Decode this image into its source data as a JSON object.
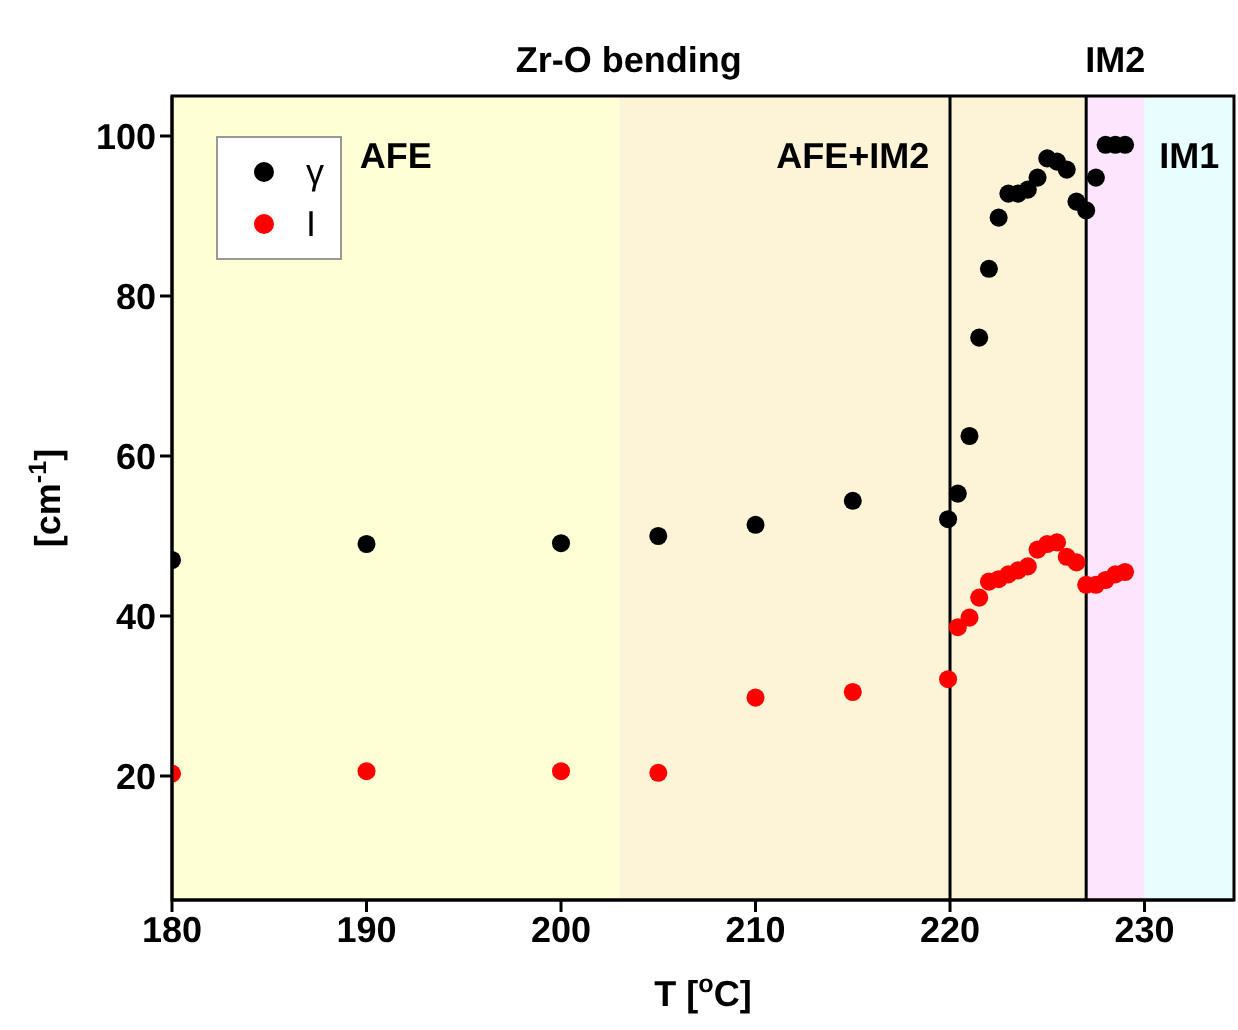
{
  "chart_data": {
    "type": "scatter",
    "title": "Zr-O bending",
    "xlabel": "T [$^{o}$C]",
    "ylabel": "[cm$^{-1}$]",
    "xlim": [
      180,
      234.6
    ],
    "xticks": [
      180,
      190,
      200,
      210,
      220,
      230
    ],
    "ylim": [
      4.5,
      105
    ],
    "yticks": [
      20,
      40,
      60,
      80,
      100
    ],
    "grid": false,
    "legend": "top left",
    "marker": "circle",
    "bands": [
      {
        "axis": "x",
        "from": 180,
        "to": 203,
        "label": "AFE",
        "color": "#ffffd6"
      },
      {
        "axis": "x",
        "from": 203,
        "to": 227,
        "label": "AFE+IM2",
        "color": "#fdf3d6"
      },
      {
        "axis": "x",
        "from": 227,
        "to": 230,
        "label": "IM2",
        "color": "#fde6fd"
      },
      {
        "axis": "x",
        "from": 230,
        "to": 234.6,
        "label": "IM1",
        "color": "#e8fdfd"
      }
    ],
    "ref_lines": [
      {
        "axis": "x",
        "value": 220,
        "color": "#000000"
      },
      {
        "axis": "x",
        "value": 227,
        "color": "#000000"
      }
    ],
    "series": [
      {
        "name": "γ",
        "color": "#000000",
        "x": [
          180,
          190,
          200,
          205,
          210,
          215,
          219.9,
          220.4,
          221,
          221.5,
          222,
          222.5,
          223,
          223.5,
          224,
          224.5,
          225,
          225.5,
          226,
          226.5,
          227,
          227.5,
          228,
          228.5,
          229
        ],
        "values": [
          47,
          49,
          49.1,
          50,
          51.4,
          54.4,
          52.1,
          55.3,
          62.5,
          74.8,
          83.4,
          89.8,
          92.8,
          92.8,
          93.3,
          94.8,
          97.2,
          96.8,
          95.8,
          91.8,
          90.7,
          94.8,
          98.9,
          98.9,
          98.9
        ]
      },
      {
        "name": "I",
        "color": "#ff0000",
        "x": [
          180,
          190,
          200,
          205,
          210,
          215,
          219.9,
          220.4,
          221,
          221.5,
          222,
          222.5,
          223,
          223.5,
          224,
          224.5,
          225,
          225.5,
          226,
          226.5,
          227,
          227.5,
          228,
          228.5,
          229
        ],
        "values": [
          20.3,
          20.6,
          20.6,
          20.4,
          29.8,
          30.5,
          32.1,
          38.6,
          39.8,
          42.3,
          44.3,
          44.6,
          45.2,
          45.7,
          46.2,
          48.3,
          49,
          49.2,
          47.4,
          46.7,
          43.9,
          43.9,
          44.5,
          45.2,
          45.5
        ]
      }
    ]
  }
}
